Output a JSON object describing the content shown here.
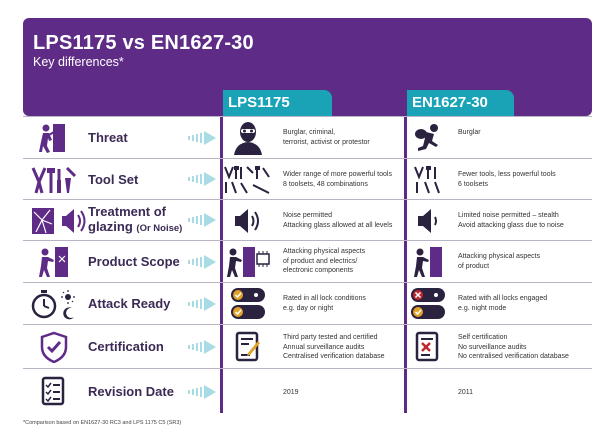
{
  "header": {
    "title": "LPS1175 vs EN1627-30",
    "subtitle": "Key differences*"
  },
  "columns": {
    "col1": "LPS1175",
    "col2": "EN1627-30"
  },
  "colors": {
    "purple": "#5e2b86",
    "teal": "#1aa2b6",
    "arrow": "#a8dbe4",
    "red": "#c0262d"
  },
  "rows": [
    {
      "label": "Threat",
      "label_small": "",
      "icon": "burglar-breaking-door-icon",
      "col1_icon": "balaclava-intruder-icon",
      "col1_lines": [
        "Burglar, criminal,",
        "terrorist, activist or protestor"
      ],
      "col2_icon": "running-burglar-icon",
      "col2_lines": [
        "Burglar"
      ]
    },
    {
      "label": "Tool Set",
      "label_small": "",
      "icon": "tools-icon",
      "col1_icon": "many-tools-icon",
      "col1_lines": [
        "Wider range of more powerful tools",
        "8 toolsets, 48 combinations"
      ],
      "col2_icon": "few-tools-icon",
      "col2_lines": [
        "Fewer tools, less powerful tools",
        "6 toolsets"
      ]
    },
    {
      "label": "Treatment of",
      "label2": "glazing",
      "label_small": "(Or Noise)",
      "icon": "broken-glass-speaker-icon",
      "col1_icon": "loud-speaker-icon",
      "col1_lines": [
        "Noise permitted",
        "Attacking glass allowed at all levels"
      ],
      "col2_icon": "quiet-speaker-icon",
      "col2_lines": [
        "Limited noise permitted – stealth",
        "Avoid attacking glass due to noise"
      ]
    },
    {
      "label": "Product Scope",
      "label_small": "",
      "icon": "person-attacking-door-icon",
      "col1_icon": "attacking-door-electronics-icon",
      "col1_lines": [
        "Attacking physical aspects",
        "of product and electrics/",
        "electronic components"
      ],
      "col2_icon": "attacking-door-icon",
      "col2_lines": [
        "Attacking physical aspects",
        "of product"
      ]
    },
    {
      "label": "Attack Ready",
      "label_small": "",
      "icon": "stopwatch-day-night-icon",
      "col1_icon": "check-day-night-icon",
      "col1_lines": [
        "Rated in all lock conditions",
        "e.g. day or night"
      ],
      "col2_icon": "cross-day-check-night-icon",
      "col2_lines": [
        "Rated with all locks engaged",
        "e.g. night mode"
      ]
    },
    {
      "label": "Certification",
      "label_small": "",
      "icon": "shield-check-icon",
      "col1_icon": "certificate-check-icon",
      "col1_lines": [
        "Third party tested and certified",
        "Annual surveillance audits",
        "Centralised verification database"
      ],
      "col2_icon": "certificate-cross-icon",
      "col2_lines": [
        "Self certification",
        "No surveillance audits",
        "No centralised verification database"
      ]
    },
    {
      "label": "Revision Date",
      "label_small": "",
      "icon": "checklist-icon",
      "col1_icon": "",
      "col1_lines": [
        "2019"
      ],
      "col2_icon": "",
      "col2_lines": [
        "2011"
      ]
    }
  ],
  "footnote": "*Comparison based on EN1627-30 RC3 and LPS 1175 C5 (SR3)"
}
